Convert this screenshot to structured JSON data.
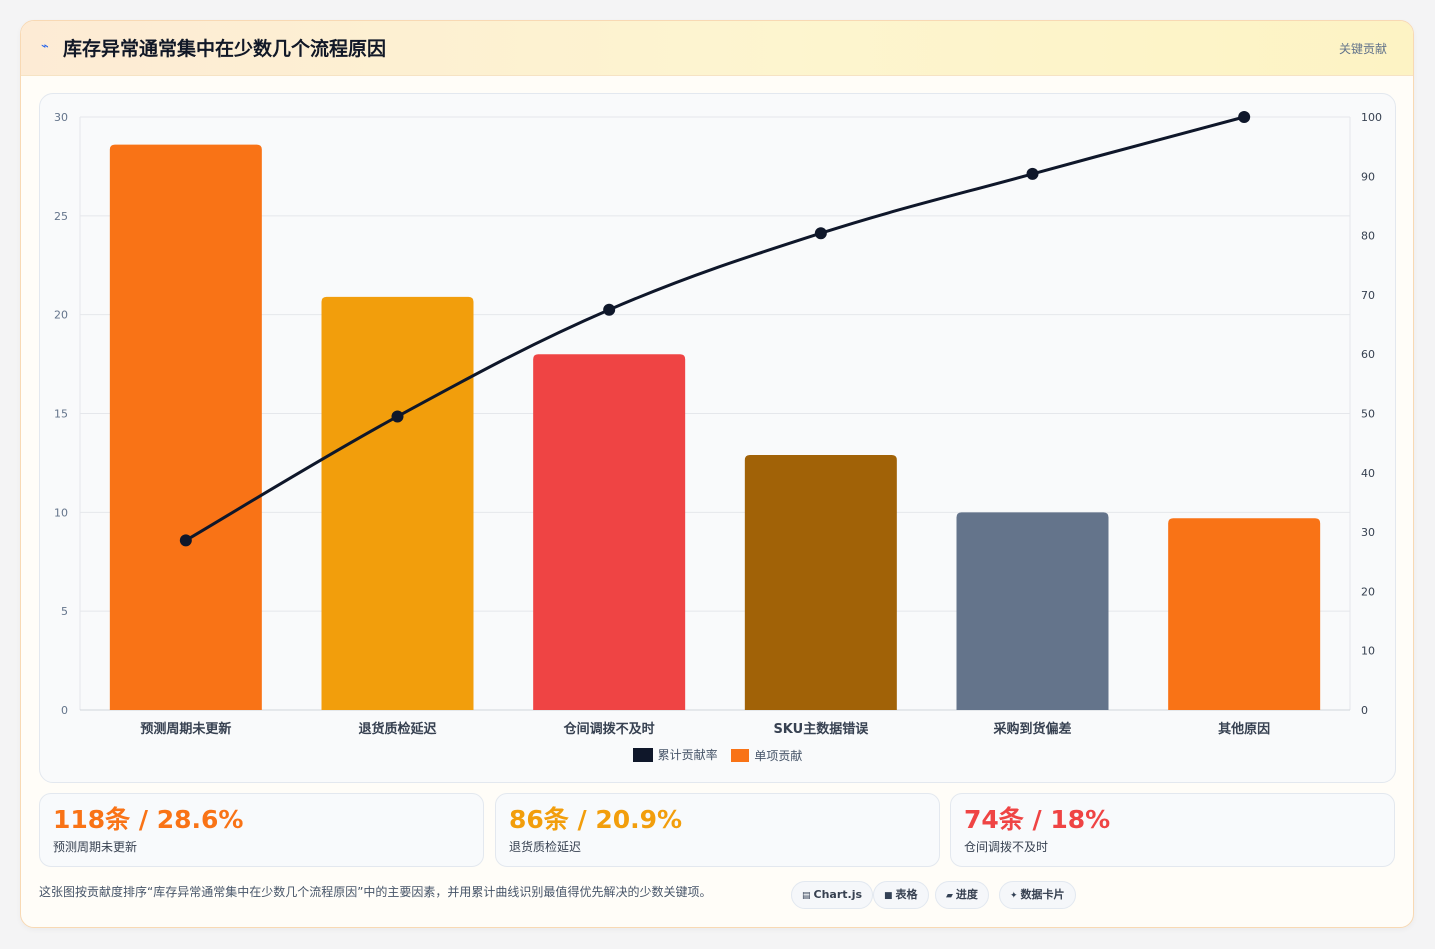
{
  "header": {
    "icon": "lightning-icon",
    "title": "库存异常通常集中在少数几个流程原因",
    "tag": "关键贡献"
  },
  "chart_data": {
    "type": "bar",
    "categories": [
      "预测周期未更新",
      "退货质检延迟",
      "仓间调拨不及时",
      "SKU主数据错误",
      "采购到货偏差",
      "其他原因"
    ],
    "series": [
      {
        "name": "单项贡献",
        "type": "bar",
        "axis": "left",
        "values": [
          28.6,
          20.9,
          18.0,
          12.9,
          10.0,
          9.7
        ],
        "colors": [
          "#f97316",
          "#f29e0c",
          "#ef4444",
          "#a16207",
          "#64748b",
          "#f97316"
        ]
      },
      {
        "name": "累计贡献率",
        "type": "line",
        "axis": "right",
        "values": [
          28.6,
          49.5,
          67.5,
          80.4,
          90.4,
          100
        ],
        "color": "#0f172a"
      }
    ],
    "ylim_left": [
      0,
      30
    ],
    "yticks_left": [
      "0",
      "5",
      "10",
      "15",
      "20",
      "25",
      "30"
    ],
    "ylim_right": [
      0,
      100
    ],
    "yticks_right": [
      "0",
      "10",
      "20",
      "30",
      "40",
      "50",
      "60",
      "70",
      "80",
      "90",
      "100"
    ],
    "grid": true,
    "legend": "bottom"
  },
  "stats": [
    {
      "value": "118条 / 28.6%",
      "label": "预测周期未更新",
      "color": "#f97316"
    },
    {
      "value": "86条 / 20.9%",
      "label": "退货质检延迟",
      "color": "#f29e0c"
    },
    {
      "value": "74条 / 18%",
      "label": "仓间调拨不及时",
      "color": "#ef4444"
    }
  ],
  "footer": {
    "note": "这张图按贡献度排序“库存异常通常集中在少数几个流程原因”中的主要因素，并用累计曲线识别最值得优先解决的少数关键项。",
    "pills": [
      {
        "icon": "chart-icon",
        "label": "Chart.js"
      },
      {
        "icon": "table-icon",
        "label": "表格"
      },
      {
        "icon": "progress-icon",
        "label": "进度"
      },
      {
        "icon": "sparkle-icon",
        "label": "数据卡片"
      }
    ]
  }
}
